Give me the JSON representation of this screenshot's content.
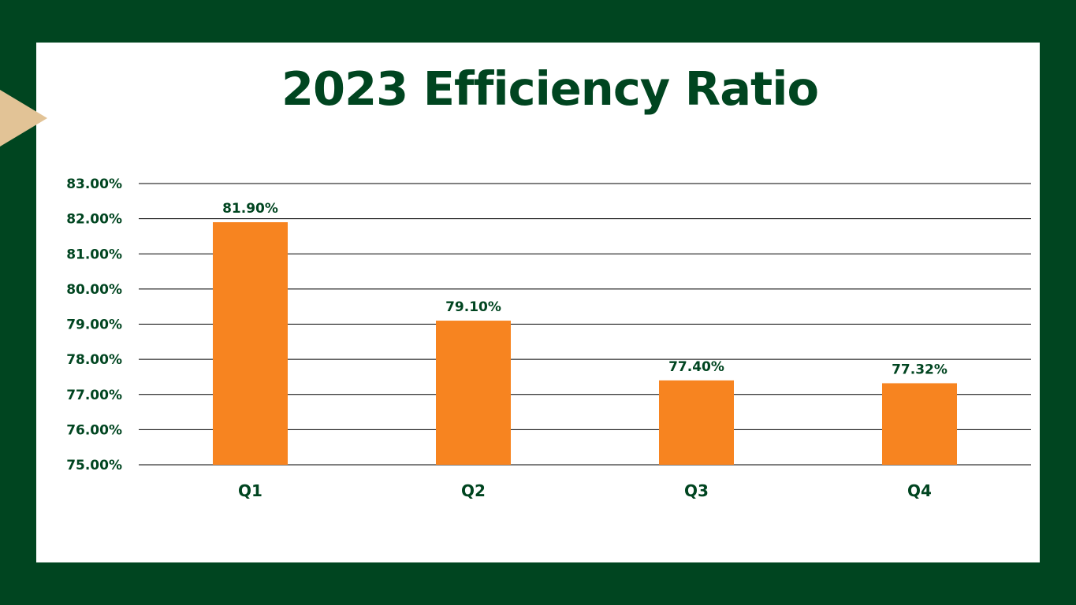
{
  "colors": {
    "background": "#004520",
    "panel": "#ffffff",
    "bar": "#f78420",
    "text": "#004520",
    "accent_arrow": "#e2c396",
    "gridline": "#000000"
  },
  "chart_data": {
    "type": "bar",
    "title": "2023 Efficiency Ratio",
    "categories": [
      "Q1",
      "Q2",
      "Q3",
      "Q4"
    ],
    "values": [
      81.9,
      79.1,
      77.4,
      77.32
    ],
    "data_labels": [
      "81.90%",
      "79.10%",
      "77.40%",
      "77.32%"
    ],
    "ylim": [
      75,
      83
    ],
    "y_ticks": [
      75,
      76,
      77,
      78,
      79,
      80,
      81,
      82,
      83
    ],
    "y_tick_labels": [
      "75.00%",
      "76.00%",
      "77.00%",
      "78.00%",
      "79.00%",
      "80.00%",
      "81.00%",
      "82.00%",
      "83.00%"
    ],
    "xlabel": "",
    "ylabel": "",
    "grid": true,
    "legend": "none"
  }
}
